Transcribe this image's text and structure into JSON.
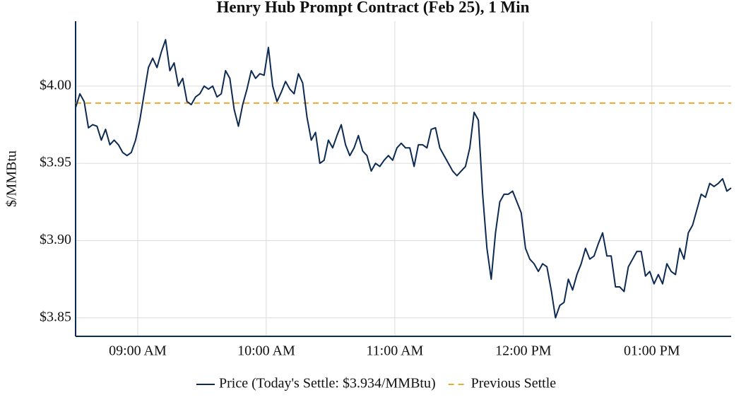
{
  "chart_data": {
    "type": "line",
    "title": "Henry Hub Prompt Contract (Feb 25), 1 Min",
    "y_label": "$/MMBtu",
    "x": [
      511,
      513,
      515,
      517,
      519,
      521,
      523,
      525,
      527,
      529,
      531,
      533,
      535,
      537,
      539,
      541,
      543,
      545,
      547,
      549,
      551,
      553,
      555,
      557,
      559,
      561,
      563,
      565,
      567,
      569,
      571,
      573,
      575,
      577,
      579,
      581,
      583,
      585,
      587,
      589,
      591,
      593,
      595,
      597,
      599,
      601,
      603,
      605,
      607,
      609,
      611,
      613,
      615,
      617,
      619,
      621,
      623,
      625,
      627,
      629,
      631,
      633,
      635,
      637,
      639,
      641,
      643,
      645,
      647,
      649,
      651,
      653,
      655,
      657,
      659,
      661,
      663,
      665,
      667,
      669,
      671,
      673,
      675,
      677,
      679,
      681,
      683,
      685,
      687,
      689,
      691,
      693,
      695,
      697,
      699,
      701,
      703,
      705,
      707,
      709,
      711,
      713,
      715,
      717,
      719,
      721,
      723,
      725,
      727,
      729,
      731,
      733,
      735,
      737,
      739,
      741,
      743,
      745,
      747,
      749,
      751,
      753,
      755,
      757,
      759,
      761,
      763,
      765,
      767,
      769,
      771,
      773,
      775,
      777,
      779,
      781,
      783,
      785,
      787,
      789,
      791,
      793,
      795,
      797,
      799,
      801,
      803,
      805,
      807,
      809,
      811,
      813,
      815,
      817
    ],
    "series": [
      {
        "name": "Price (Today's Settle: $3.934/MMBtu)",
        "color": "#0d2a52",
        "values": [
          3.986,
          3.995,
          3.99,
          3.973,
          3.975,
          3.974,
          3.965,
          3.972,
          3.962,
          3.965,
          3.962,
          3.957,
          3.955,
          3.957,
          3.965,
          3.978,
          3.995,
          4.012,
          4.018,
          4.012,
          4.022,
          4.03,
          4.01,
          4.015,
          4.0,
          4.005,
          3.99,
          3.988,
          3.993,
          3.995,
          4.0,
          3.998,
          4.0,
          3.993,
          3.995,
          4.01,
          4.005,
          3.985,
          3.974,
          3.988,
          3.998,
          4.01,
          4.005,
          4.008,
          4.007,
          4.025,
          4.0,
          3.99,
          3.996,
          4.003,
          3.998,
          3.995,
          4.008,
          4.002,
          3.98,
          3.965,
          3.97,
          3.95,
          3.952,
          3.965,
          3.96,
          3.968,
          3.975,
          3.962,
          3.955,
          3.96,
          3.968,
          3.958,
          3.955,
          3.945,
          3.95,
          3.948,
          3.952,
          3.955,
          3.952,
          3.96,
          3.963,
          3.96,
          3.96,
          3.948,
          3.962,
          3.962,
          3.96,
          3.972,
          3.973,
          3.96,
          3.955,
          3.95,
          3.945,
          3.942,
          3.945,
          3.948,
          3.96,
          3.983,
          3.978,
          3.93,
          3.895,
          3.875,
          3.905,
          3.925,
          3.93,
          3.93,
          3.932,
          3.925,
          3.918,
          3.895,
          3.888,
          3.885,
          3.88,
          3.885,
          3.883,
          3.868,
          3.85,
          3.858,
          3.86,
          3.875,
          3.868,
          3.878,
          3.885,
          3.895,
          3.888,
          3.89,
          3.898,
          3.905,
          3.89,
          3.89,
          3.87,
          3.87,
          3.867,
          3.883,
          3.888,
          3.893,
          3.893,
          3.877,
          3.88,
          3.872,
          3.878,
          3.872,
          3.885,
          3.88,
          3.878,
          3.895,
          3.888,
          3.905,
          3.91,
          3.92,
          3.93,
          3.928,
          3.937,
          3.935,
          3.937,
          3.94,
          3.932,
          3.934
        ]
      }
    ],
    "reference_lines": [
      {
        "name": "Previous Settle",
        "value": 3.989,
        "color": "#f0a830"
      }
    ],
    "xlim": [
      511,
      817
    ],
    "xticks": [
      {
        "value": 540,
        "label": "09:00 AM"
      },
      {
        "value": 600,
        "label": "10:00 AM"
      },
      {
        "value": 660,
        "label": "11:00 AM"
      },
      {
        "value": 720,
        "label": "12:00 PM"
      },
      {
        "value": 780,
        "label": "01:00 PM"
      }
    ],
    "ylim": [
      3.838,
      4.042
    ],
    "yticks": [
      {
        "value": 3.85,
        "label": "$3.85"
      },
      {
        "value": 3.9,
        "label": "$3.90"
      },
      {
        "value": 3.95,
        "label": "$3.95"
      },
      {
        "value": 4,
        "label": "$4.00"
      }
    ],
    "grid": true
  }
}
